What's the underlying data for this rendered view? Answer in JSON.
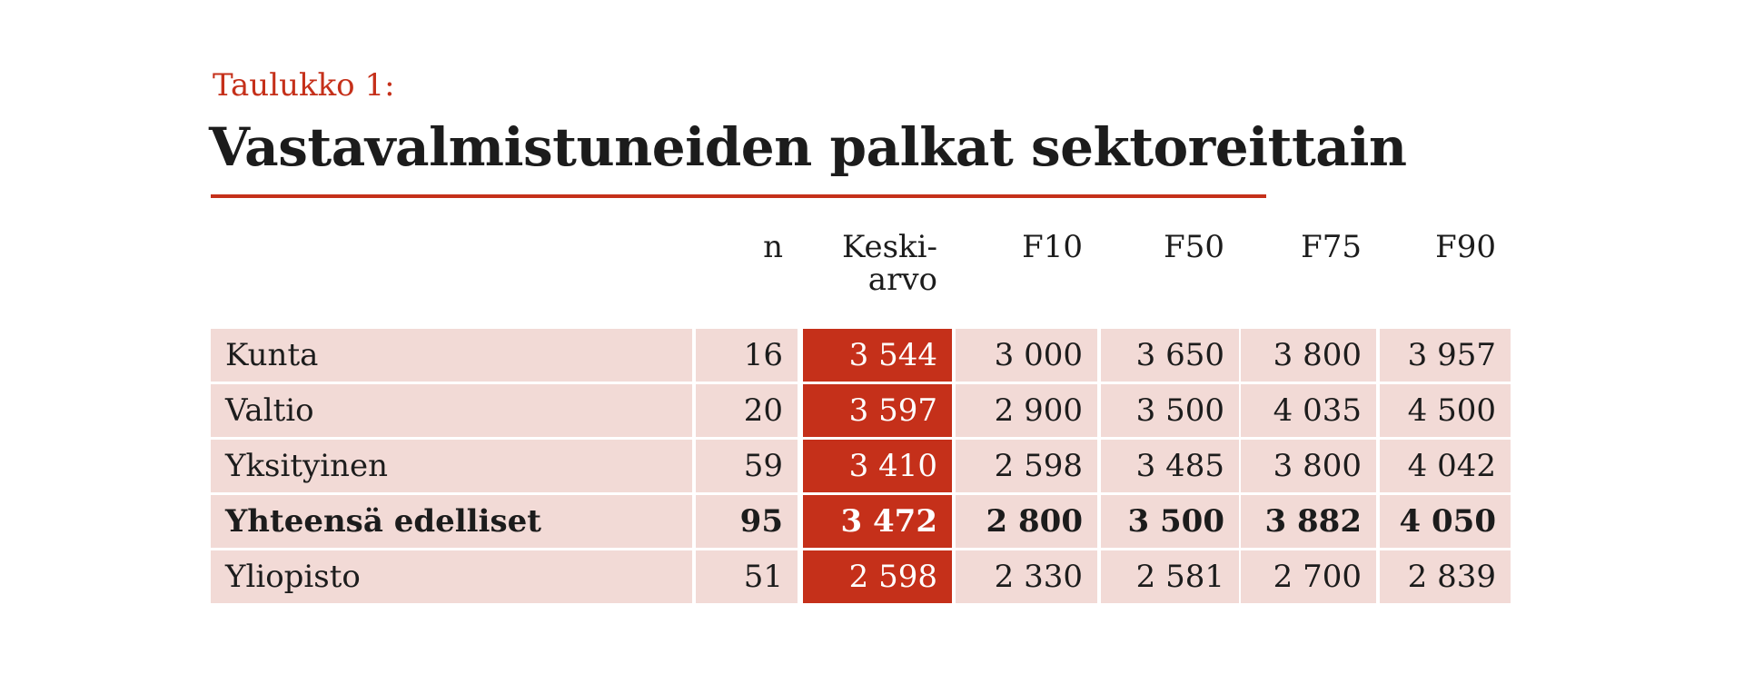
{
  "table": {
    "label": "Taulukko 1:",
    "title": "Vastavalmistuneiden palkat sektoreittain"
  },
  "chart_data": {
    "type": "table",
    "columns": [
      {
        "label": "n"
      },
      {
        "label": "Keski-",
        "label2": "arvo"
      },
      {
        "label": "F10"
      },
      {
        "label": "F50"
      },
      {
        "label": "F75"
      },
      {
        "label": "F90"
      }
    ],
    "rows": [
      {
        "label": "Kunta",
        "values": [
          "16",
          "3 544",
          "3 000",
          "3 650",
          "3 800",
          "3 957"
        ],
        "bold": false
      },
      {
        "label": "Valtio",
        "values": [
          "20",
          "3 597",
          "2 900",
          "3 500",
          "4 035",
          "4 500"
        ],
        "bold": false
      },
      {
        "label": "Yksityinen",
        "values": [
          "59",
          "3 410",
          "2 598",
          "3 485",
          "3 800",
          "4 042"
        ],
        "bold": false
      },
      {
        "label": "Yhteensä edelliset",
        "values": [
          "95",
          "3 472",
          "2 800",
          "3 500",
          "3 882",
          "4 050"
        ],
        "bold": true
      },
      {
        "label": "Yliopisto",
        "values": [
          "51",
          "2 598",
          "2 330",
          "2 581",
          "2 700",
          "2 839"
        ],
        "bold": false
      }
    ],
    "highlight_column_color": "#c5301a",
    "row_background_color": "#f2dad6"
  }
}
